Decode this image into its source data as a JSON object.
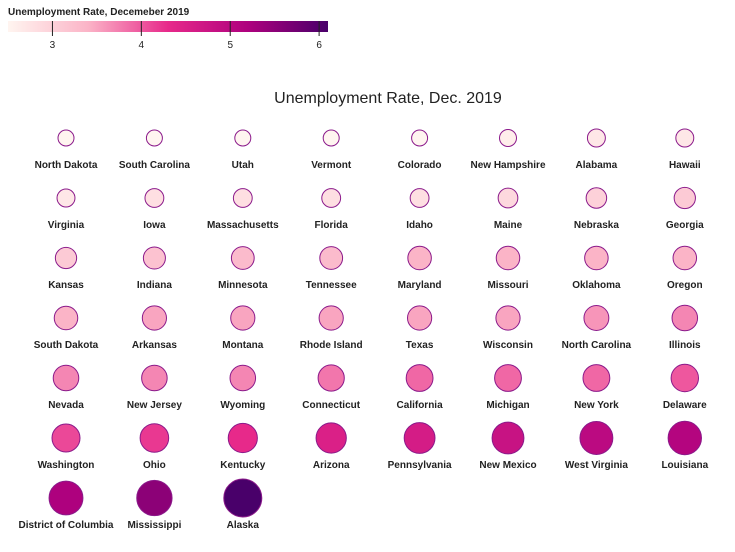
{
  "legend": {
    "title": "Unemployment Rate, Decemeber 2019",
    "domain": [
      2.5,
      6.1
    ],
    "ticks": [
      3,
      4,
      5,
      6
    ],
    "colors": [
      "#fff5f0",
      "#fbb4c7",
      "#e7298a",
      "#ae017e",
      "#49006a"
    ]
  },
  "chart_data": {
    "type": "scatter",
    "title": "Unemployment Rate, Dec. 2019",
    "encoding": "circle area and fill color encode unemployment rate (%)",
    "color_scale": "RdPu sequential",
    "points": [
      {
        "state": "North Dakota",
        "rate": 2.2
      },
      {
        "state": "South Carolina",
        "rate": 2.3
      },
      {
        "state": "Utah",
        "rate": 2.4
      },
      {
        "state": "Vermont",
        "rate": 2.4
      },
      {
        "state": "Colorado",
        "rate": 2.5
      },
      {
        "state": "New Hampshire",
        "rate": 2.6
      },
      {
        "state": "Alabama",
        "rate": 2.7
      },
      {
        "state": "Hawaii",
        "rate": 2.7
      },
      {
        "state": "Virginia",
        "rate": 2.7
      },
      {
        "state": "Iowa",
        "rate": 2.8
      },
      {
        "state": "Massachusetts",
        "rate": 2.8
      },
      {
        "state": "Florida",
        "rate": 2.8
      },
      {
        "state": "Idaho",
        "rate": 2.8
      },
      {
        "state": "Maine",
        "rate": 2.9
      },
      {
        "state": "Nebraska",
        "rate": 3.0
      },
      {
        "state": "Georgia",
        "rate": 3.1
      },
      {
        "state": "Kansas",
        "rate": 3.1
      },
      {
        "state": "Indiana",
        "rate": 3.2
      },
      {
        "state": "Minnesota",
        "rate": 3.3
      },
      {
        "state": "Tennessee",
        "rate": 3.3
      },
      {
        "state": "Maryland",
        "rate": 3.4
      },
      {
        "state": "Missouri",
        "rate": 3.4
      },
      {
        "state": "Oklahoma",
        "rate": 3.4
      },
      {
        "state": "Oregon",
        "rate": 3.4
      },
      {
        "state": "South Dakota",
        "rate": 3.4
      },
      {
        "state": "Arkansas",
        "rate": 3.5
      },
      {
        "state": "Montana",
        "rate": 3.5
      },
      {
        "state": "Rhode Island",
        "rate": 3.5
      },
      {
        "state": "Texas",
        "rate": 3.5
      },
      {
        "state": "Wisconsin",
        "rate": 3.5
      },
      {
        "state": "North Carolina",
        "rate": 3.6
      },
      {
        "state": "Illinois",
        "rate": 3.7
      },
      {
        "state": "Nevada",
        "rate": 3.7
      },
      {
        "state": "New Jersey",
        "rate": 3.7
      },
      {
        "state": "Wyoming",
        "rate": 3.7
      },
      {
        "state": "Connecticut",
        "rate": 3.8
      },
      {
        "state": "California",
        "rate": 3.9
      },
      {
        "state": "Michigan",
        "rate": 3.9
      },
      {
        "state": "New York",
        "rate": 3.9
      },
      {
        "state": "Delaware",
        "rate": 4.0
      },
      {
        "state": "Washington",
        "rate": 4.1
      },
      {
        "state": "Ohio",
        "rate": 4.2
      },
      {
        "state": "Kentucky",
        "rate": 4.3
      },
      {
        "state": "Arizona",
        "rate": 4.5
      },
      {
        "state": "Pennsylvania",
        "rate": 4.6
      },
      {
        "state": "New Mexico",
        "rate": 4.8
      },
      {
        "state": "West Virginia",
        "rate": 5.0
      },
      {
        "state": "Louisiana",
        "rate": 5.1
      },
      {
        "state": "District of Columbia",
        "rate": 5.2
      },
      {
        "state": "Mississippi",
        "rate": 5.5
      },
      {
        "state": "Alaska",
        "rate": 6.1
      }
    ]
  }
}
